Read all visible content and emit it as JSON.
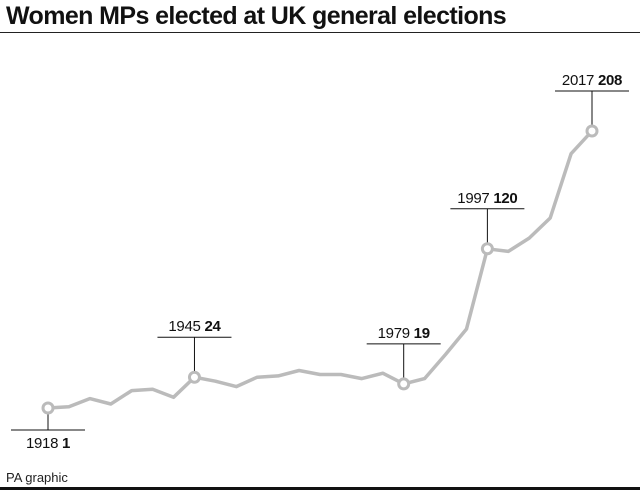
{
  "title": "Women MPs elected at UK general elections",
  "credit": "PA graphic",
  "chart_data": {
    "type": "line",
    "title": "Women MPs elected at UK general elections",
    "xlabel": "",
    "ylabel": "",
    "grid": false,
    "legend": "none",
    "line_color": "#bbbbbb",
    "series": [
      {
        "x": [
          1918,
          1922,
          1923,
          1924,
          1929,
          1931,
          1935,
          1945,
          1950,
          1951,
          1955,
          1959,
          1964,
          1966,
          1970,
          1974,
          1974.8,
          1979,
          1983,
          1987,
          1992,
          1997,
          2001,
          2005,
          2010,
          2015,
          2017
        ],
        "values": [
          1,
          2,
          8,
          4,
          14,
          15,
          9,
          24,
          21,
          17,
          24,
          25,
          29,
          26,
          26,
          23,
          27,
          19,
          23,
          41,
          60,
          120,
          118,
          128,
          143,
          191,
          208
        ]
      }
    ],
    "annotations": [
      {
        "year": "1918",
        "value": "1"
      },
      {
        "year": "1945",
        "value": "24"
      },
      {
        "year": "1979",
        "value": "19"
      },
      {
        "year": "1997",
        "value": "120"
      },
      {
        "year": "2017",
        "value": "208"
      }
    ]
  }
}
